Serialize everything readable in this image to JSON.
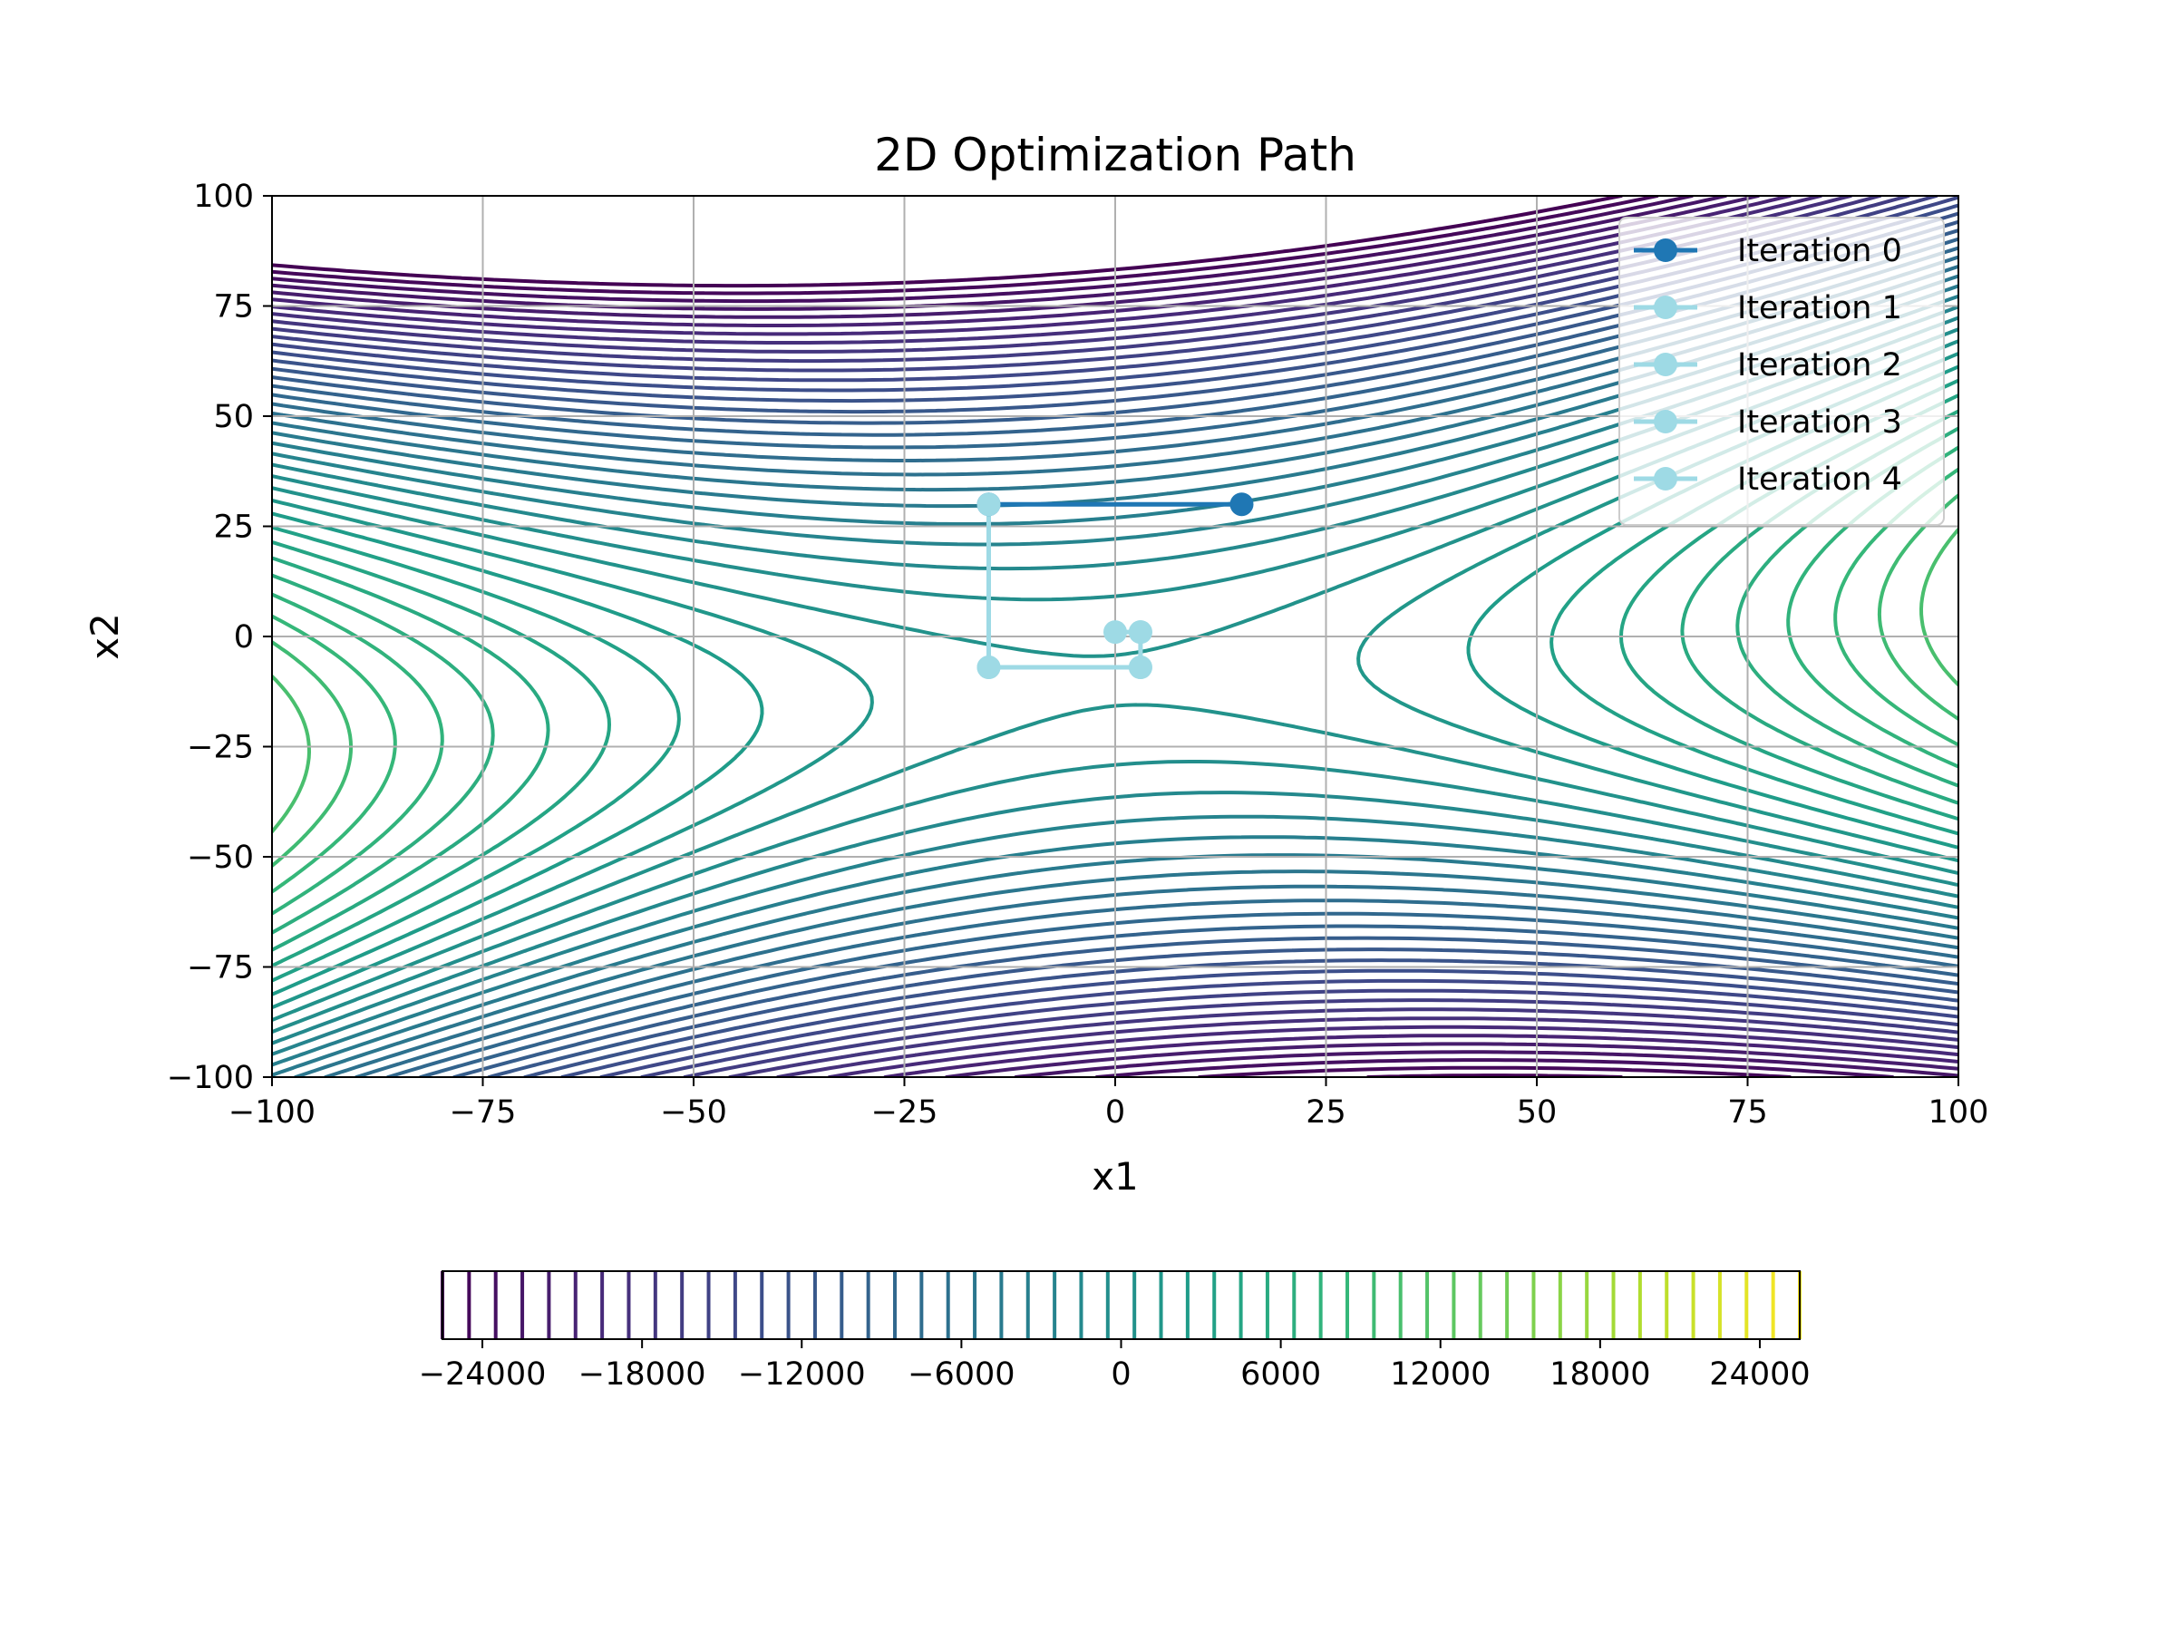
{
  "chart_data": {
    "type": "contour",
    "title": "2D Optimization Path",
    "xlabel": "x1",
    "ylabel": "x2",
    "xlim": [
      -100,
      100
    ],
    "ylim": [
      -100,
      100
    ],
    "xticks": [
      -100,
      -75,
      -50,
      -25,
      0,
      25,
      50,
      75,
      100
    ],
    "yticks": [
      -100,
      -75,
      -50,
      -25,
      0,
      25,
      50,
      75,
      100
    ],
    "grid": true,
    "colormap": "viridis",
    "contour": {
      "levels_min": -25500,
      "levels_max": 25500,
      "levels_step": 1000,
      "function": "x1^2 - 3*x2^2 + x1*x2 + 10*x1 - 60*x2 + ... (saddle surface)"
    },
    "colorbar": {
      "orientation": "horizontal",
      "ticks": [
        -24000,
        -18000,
        -12000,
        -6000,
        0,
        6000,
        12000,
        18000,
        24000
      ],
      "tick_labels": [
        "−24000",
        "−18000",
        "−12000",
        "−6000",
        "0",
        "6000",
        "12000",
        "18000",
        "24000"
      ]
    },
    "legend_position": "upper right",
    "series": [
      {
        "name": "Iteration 0",
        "color": "#1f77b4",
        "points": [
          [
            15,
            30
          ],
          [
            -15,
            30
          ]
        ]
      },
      {
        "name": "Iteration 1",
        "color": "#9edae5",
        "points": [
          [
            -15,
            30
          ],
          [
            -15,
            -7
          ]
        ]
      },
      {
        "name": "Iteration 2",
        "color": "#9edae5",
        "points": [
          [
            -15,
            -7
          ],
          [
            3,
            -7
          ]
        ]
      },
      {
        "name": "Iteration 3",
        "color": "#9edae5",
        "points": [
          [
            3,
            -7
          ],
          [
            3,
            1
          ]
        ]
      },
      {
        "name": "Iteration 4",
        "color": "#9edae5",
        "points": [
          [
            3,
            1
          ],
          [
            0,
            1
          ]
        ]
      }
    ]
  }
}
